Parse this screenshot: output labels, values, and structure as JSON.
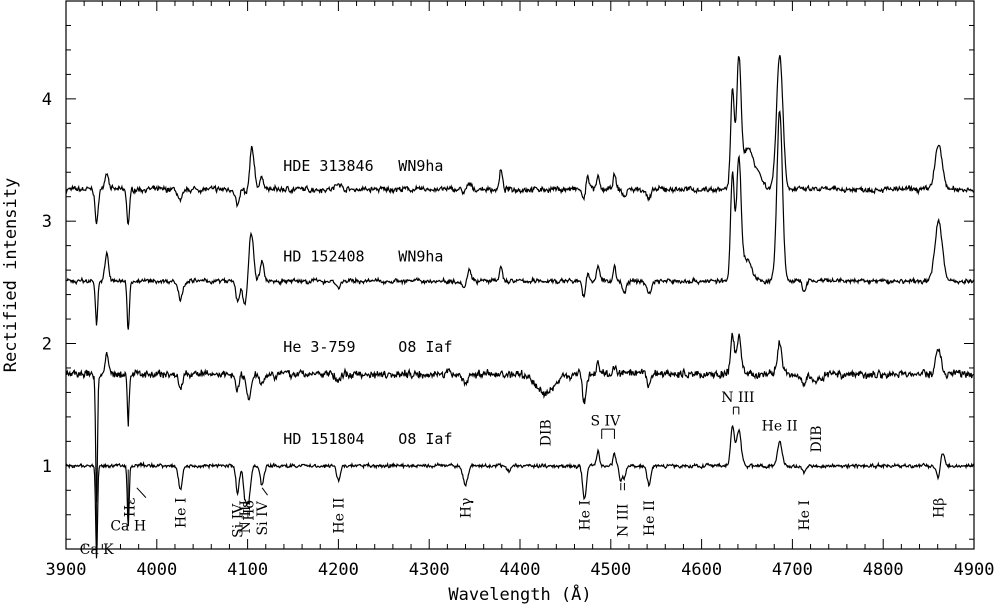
{
  "chart_data": {
    "type": "line",
    "xlabel": "Wavelength (Å)",
    "ylabel": "Rectified intensity",
    "xlim": [
      3900,
      4900
    ],
    "ylim": [
      0.32,
      4.8
    ],
    "xticks": [
      3900,
      4000,
      4100,
      4200,
      4300,
      4400,
      4500,
      4600,
      4700,
      4800,
      4900
    ],
    "yticks": [
      1,
      2,
      3,
      4
    ],
    "grid": false,
    "legend": "none",
    "series": [
      {
        "name": "HDE 313846",
        "spectral_type": "WN9ha",
        "baseline": 3.26,
        "label_wavelength": 4125,
        "label_level": 3.41,
        "features": [
          [
            3933.7,
            -0.3,
            1.5
          ],
          [
            3968.5,
            -0.28,
            1.5
          ],
          [
            3945,
            0.14,
            2
          ],
          [
            4026,
            -0.1,
            2.5
          ],
          [
            4089,
            -0.14,
            2
          ],
          [
            4101,
            -0.18,
            2.5
          ],
          [
            4104,
            0.4,
            3
          ],
          [
            4116,
            0.1,
            2
          ],
          [
            4200,
            0.06,
            2.5
          ],
          [
            4340,
            -0.08,
            2.5
          ],
          [
            4342,
            0.08,
            3
          ],
          [
            4379,
            0.16,
            1.5
          ],
          [
            4471,
            -0.12,
            2
          ],
          [
            4474,
            0.14,
            2
          ],
          [
            4486,
            0.1,
            1.5
          ],
          [
            4504,
            0.12,
            1.5
          ],
          [
            4515,
            -0.06,
            2
          ],
          [
            4542,
            -0.08,
            2.5
          ],
          [
            4634,
            0.8,
            2
          ],
          [
            4641,
            1.02,
            2.5
          ],
          [
            4650,
            0.3,
            5
          ],
          [
            4660,
            0.15,
            6
          ],
          [
            4686,
            1.1,
            3.5
          ],
          [
            4861,
            0.36,
            4
          ]
        ]
      },
      {
        "name": "HD 152408",
        "spectral_type": "WN9ha",
        "baseline": 2.51,
        "label_wavelength": 4125,
        "label_level": 2.67,
        "features": [
          [
            3933.7,
            -0.35,
            1.2
          ],
          [
            3968.5,
            -0.4,
            1.2
          ],
          [
            3945,
            0.22,
            2
          ],
          [
            4026,
            -0.14,
            2.5
          ],
          [
            4089,
            -0.16,
            2
          ],
          [
            4097,
            -0.2,
            2.5
          ],
          [
            4104,
            0.4,
            2.5
          ],
          [
            4116,
            0.16,
            2
          ],
          [
            4200,
            -0.06,
            2
          ],
          [
            4340,
            -0.1,
            2.5
          ],
          [
            4343,
            0.12,
            3
          ],
          [
            4379,
            0.12,
            1.5
          ],
          [
            4471,
            -0.16,
            2
          ],
          [
            4474,
            0.1,
            2
          ],
          [
            4486,
            0.14,
            1.5
          ],
          [
            4504,
            0.12,
            1.5
          ],
          [
            4515,
            -0.1,
            2
          ],
          [
            4542,
            -0.1,
            2.5
          ],
          [
            4634,
            0.88,
            2
          ],
          [
            4641,
            1.0,
            2.5
          ],
          [
            4650,
            0.18,
            5
          ],
          [
            4686,
            1.4,
            3
          ],
          [
            4713,
            -0.08,
            2
          ],
          [
            4861,
            0.5,
            4
          ]
        ]
      },
      {
        "name": "He 3-759",
        "spectral_type": "O8 Iaf",
        "baseline": 1.75,
        "label_wavelength": 4125,
        "label_level": 1.93,
        "features": [
          [
            3933.7,
            -1.05,
            1.0
          ],
          [
            3968.5,
            -0.42,
            1.0
          ],
          [
            3945,
            0.14,
            2
          ],
          [
            4026,
            -0.12,
            2
          ],
          [
            4089,
            -0.12,
            2
          ],
          [
            4101,
            -0.2,
            2.5
          ],
          [
            4116,
            -0.08,
            2
          ],
          [
            4200,
            -0.08,
            2
          ],
          [
            4340,
            -0.08,
            2.5
          ],
          [
            4428,
            -0.16,
            10
          ],
          [
            4471,
            -0.22,
            2
          ],
          [
            4486,
            0.1,
            1.5
          ],
          [
            4504,
            0.06,
            1.5
          ],
          [
            4542,
            -0.08,
            2
          ],
          [
            4634,
            0.3,
            2
          ],
          [
            4641,
            0.3,
            2.5
          ],
          [
            4686,
            0.26,
            2.5
          ],
          [
            4713,
            -0.08,
            2
          ],
          [
            4726,
            -0.06,
            5
          ],
          [
            4861,
            0.2,
            3
          ]
        ]
      },
      {
        "name": "HD 151804",
        "spectral_type": "O8 Iaf",
        "baseline": 1.0,
        "label_wavelength": 4125,
        "label_level": 1.18,
        "features": [
          [
            3933.7,
            -0.78,
            1.0
          ],
          [
            3968.5,
            -0.5,
            1.0
          ],
          [
            4026,
            -0.2,
            2
          ],
          [
            4089,
            -0.22,
            1.8
          ],
          [
            4097,
            -0.22,
            1.8
          ],
          [
            4101,
            -0.28,
            2.2
          ],
          [
            4116,
            -0.16,
            2
          ],
          [
            4200,
            -0.12,
            2
          ],
          [
            4340,
            -0.16,
            2.5
          ],
          [
            4388,
            -0.04,
            2
          ],
          [
            4471,
            -0.28,
            2
          ],
          [
            4486,
            0.12,
            1.5
          ],
          [
            4504,
            0.1,
            1.5
          ],
          [
            4511,
            -0.12,
            1.5
          ],
          [
            4515,
            -0.1,
            1.5
          ],
          [
            4542,
            -0.16,
            2
          ],
          [
            4634,
            0.32,
            2
          ],
          [
            4641,
            0.3,
            2.5
          ],
          [
            4686,
            0.2,
            2.5
          ],
          [
            4713,
            -0.06,
            2
          ],
          [
            4861,
            -0.12,
            2
          ],
          [
            4865,
            0.12,
            2.5
          ]
        ]
      }
    ],
    "line_ids": [
      {
        "text": "Ca K",
        "wavelength": 3933.7,
        "level": 0.28,
        "horizontal": true
      },
      {
        "text": "Ca H",
        "wavelength": 3968.5,
        "level": 0.47,
        "horizontal": true
      },
      {
        "text": "Hε",
        "wavelength": 3970,
        "level": 0.74
      },
      {
        "text": "He I",
        "wavelength": 4026,
        "level": 0.74
      },
      {
        "text": "Si IV",
        "wavelength": 4089,
        "level": 0.69
      },
      {
        "text": "N III",
        "wavelength": 4097,
        "level": 0.72
      },
      {
        "text": "Hδ",
        "wavelength": 4101,
        "level": 0.72
      },
      {
        "text": "Si IV",
        "wavelength": 4116,
        "level": 0.71
      },
      {
        "text": "He II",
        "wavelength": 4200,
        "level": 0.74
      },
      {
        "text": "Hγ",
        "wavelength": 4340,
        "level": 0.74
      },
      {
        "text": "He I",
        "wavelength": 4471,
        "level": 0.72
      },
      {
        "text": "N III",
        "wavelength": 4513,
        "level": 0.69
      },
      {
        "text": "He II",
        "wavelength": 4542,
        "level": 0.72
      },
      {
        "text": "He I",
        "wavelength": 4713,
        "level": 0.72
      },
      {
        "text": "Hβ",
        "wavelength": 4861,
        "level": 0.74
      },
      {
        "text": "DIB",
        "wavelength": 4428,
        "level": 1.38
      },
      {
        "text": "DIB",
        "wavelength": 4726,
        "level": 1.33
      },
      {
        "text": "S IV",
        "wavelength": 4494,
        "level": 1.33,
        "horizontal": true
      },
      {
        "text": "N III",
        "wavelength": 4640,
        "level": 1.52,
        "horizontal": true
      },
      {
        "text": "He II",
        "wavelength": 4686,
        "level": 1.29,
        "horizontal": true
      }
    ]
  }
}
